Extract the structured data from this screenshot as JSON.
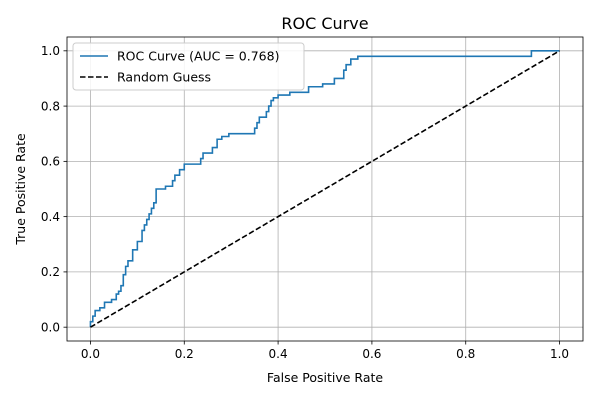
{
  "chart_data": {
    "type": "line",
    "title": "ROC Curve",
    "xlabel": "False Positive Rate",
    "ylabel": "True Positive Rate",
    "xlim": [
      -0.05,
      1.05
    ],
    "ylim": [
      -0.05,
      1.05
    ],
    "xticks": [
      "0.0",
      "0.2",
      "0.4",
      "0.6",
      "0.8",
      "1.0"
    ],
    "yticks": [
      "0.0",
      "0.2",
      "0.4",
      "0.6",
      "0.8",
      "1.0"
    ],
    "xtick_values": [
      0,
      0.2,
      0.4,
      0.6,
      0.8,
      1.0
    ],
    "ytick_values": [
      0,
      0.2,
      0.4,
      0.6,
      0.8,
      1.0
    ],
    "grid": true,
    "legend_position": "top-left",
    "series": [
      {
        "name": "ROC Curve (AUC = 0.768)",
        "color": "#1f77b4",
        "style": "solid",
        "x": [
          0.0,
          0.0,
          0.005,
          0.005,
          0.01,
          0.01,
          0.02,
          0.02,
          0.03,
          0.03,
          0.045,
          0.045,
          0.055,
          0.055,
          0.06,
          0.06,
          0.065,
          0.065,
          0.07,
          0.07,
          0.075,
          0.075,
          0.08,
          0.08,
          0.09,
          0.09,
          0.1,
          0.1,
          0.11,
          0.11,
          0.115,
          0.115,
          0.12,
          0.12,
          0.125,
          0.125,
          0.13,
          0.13,
          0.135,
          0.135,
          0.14,
          0.14,
          0.16,
          0.16,
          0.175,
          0.175,
          0.18,
          0.18,
          0.19,
          0.19,
          0.2,
          0.2,
          0.235,
          0.235,
          0.24,
          0.24,
          0.26,
          0.26,
          0.27,
          0.27,
          0.28,
          0.28,
          0.295,
          0.295,
          0.35,
          0.35,
          0.355,
          0.355,
          0.36,
          0.36,
          0.375,
          0.375,
          0.38,
          0.38,
          0.385,
          0.385,
          0.39,
          0.39,
          0.4,
          0.4,
          0.425,
          0.425,
          0.465,
          0.465,
          0.495,
          0.495,
          0.52,
          0.52,
          0.54,
          0.54,
          0.545,
          0.545,
          0.555,
          0.555,
          0.57,
          0.57,
          0.94,
          0.94,
          1.0
        ],
        "y": [
          0.0,
          0.02,
          0.02,
          0.04,
          0.04,
          0.06,
          0.06,
          0.07,
          0.07,
          0.09,
          0.09,
          0.1,
          0.1,
          0.12,
          0.12,
          0.13,
          0.13,
          0.15,
          0.15,
          0.19,
          0.19,
          0.22,
          0.22,
          0.24,
          0.24,
          0.28,
          0.28,
          0.31,
          0.31,
          0.35,
          0.35,
          0.37,
          0.37,
          0.39,
          0.39,
          0.41,
          0.41,
          0.43,
          0.43,
          0.45,
          0.45,
          0.5,
          0.5,
          0.51,
          0.51,
          0.53,
          0.53,
          0.55,
          0.55,
          0.57,
          0.57,
          0.59,
          0.59,
          0.61,
          0.61,
          0.63,
          0.63,
          0.65,
          0.65,
          0.68,
          0.68,
          0.69,
          0.69,
          0.7,
          0.7,
          0.72,
          0.72,
          0.74,
          0.74,
          0.76,
          0.76,
          0.78,
          0.78,
          0.8,
          0.8,
          0.82,
          0.82,
          0.83,
          0.83,
          0.84,
          0.84,
          0.85,
          0.85,
          0.87,
          0.87,
          0.88,
          0.88,
          0.9,
          0.9,
          0.93,
          0.93,
          0.95,
          0.95,
          0.97,
          0.97,
          0.98,
          0.98,
          1.0,
          1.0
        ]
      },
      {
        "name": "Random Guess",
        "color": "#000000",
        "style": "dashed",
        "x": [
          0.0,
          1.0
        ],
        "y": [
          0.0,
          1.0
        ]
      }
    ]
  }
}
